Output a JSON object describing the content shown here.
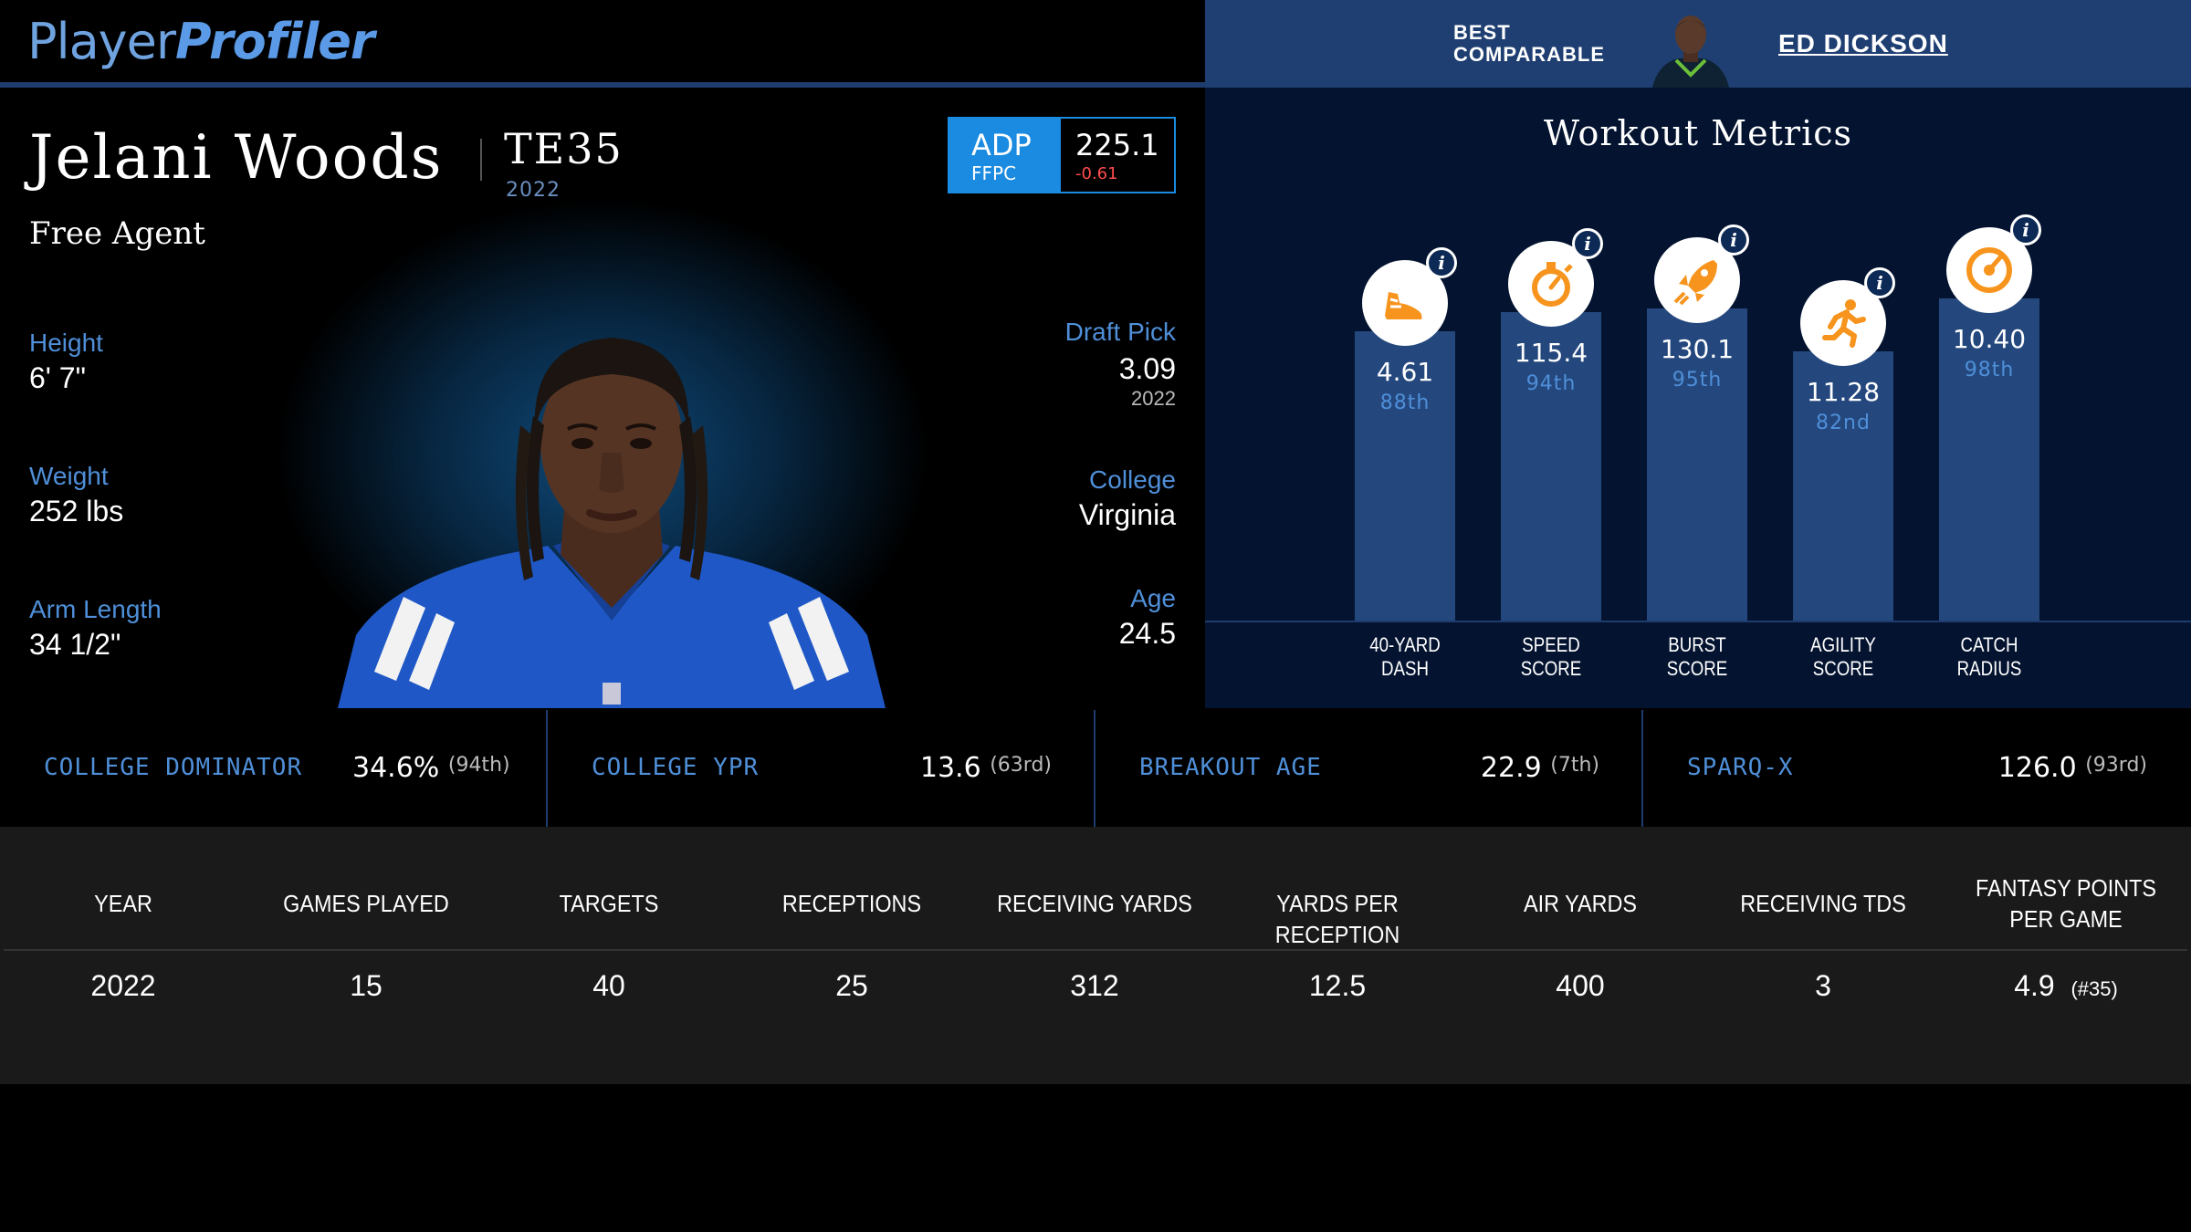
{
  "header": {
    "logo_part1": "Player",
    "logo_part2": "Profiler",
    "best_comparable_line1": "BEST",
    "best_comparable_line2": "COMPARABLE",
    "comparable_name": "ED DICKSON"
  },
  "player": {
    "name": "Jelani Woods",
    "position_rank": "TE35",
    "position_rank_year": "2022",
    "team": "Free Agent",
    "adp": {
      "label": "ADP",
      "site": "FFPC",
      "value": "225.1",
      "change": "-0.61"
    },
    "height_label": "Height",
    "height": "6' 7\"",
    "weight_label": "Weight",
    "weight": "252 lbs",
    "arm_label": "Arm Length",
    "arm": "34 1/2\"",
    "draft_label": "Draft Pick",
    "draft_pick": "3.09",
    "draft_year": "2022",
    "college_label": "College",
    "college": "Virginia",
    "age_label": "Age",
    "age": "24.5"
  },
  "workout": {
    "title": "Workout Metrics",
    "info_glyph": "i",
    "items": [
      {
        "label1": "40-YARD",
        "label2": "DASH",
        "value": "4.61",
        "percentile": "88th",
        "pct": 88,
        "icon": "shoe-icon"
      },
      {
        "label1": "SPEED",
        "label2": "SCORE",
        "value": "115.4",
        "percentile": "94th",
        "pct": 94,
        "icon": "stopwatch-icon"
      },
      {
        "label1": "BURST",
        "label2": "SCORE",
        "value": "130.1",
        "percentile": "95th",
        "pct": 95,
        "icon": "rocket-icon"
      },
      {
        "label1": "AGILITY",
        "label2": "SCORE",
        "value": "11.28",
        "percentile": "82nd",
        "pct": 82,
        "icon": "runner-icon"
      },
      {
        "label1": "CATCH",
        "label2": "RADIUS",
        "value": "10.40",
        "percentile": "98th",
        "pct": 98,
        "icon": "target-icon"
      }
    ],
    "accent_color": "#f7941d"
  },
  "metrics": [
    {
      "label": "COLLEGE DOMINATOR",
      "value": "34.6%",
      "pct": "(94th)"
    },
    {
      "label": "COLLEGE YPR",
      "value": "13.6",
      "pct": "(63rd)"
    },
    {
      "label": "BREAKOUT AGE",
      "value": "22.9",
      "pct": "(7th)"
    },
    {
      "label": "SPARQ-X",
      "value": "126.0",
      "pct": "(93rd)"
    }
  ],
  "table": {
    "headers": [
      "YEAR",
      "GAMES PLAYED",
      "TARGETS",
      "RECEPTIONS",
      "RECEIVING YARDS",
      "YARDS PER RECEPTION",
      "AIR YARDS",
      "RECEIVING TDS",
      "FANTASY POINTS PER GAME"
    ],
    "row": [
      "2022",
      "15",
      "40",
      "25",
      "312",
      "12.5",
      "400",
      "3",
      "4.9"
    ],
    "row_rank": "(#35)"
  },
  "colors": {
    "accent_blue": "#4f8fd8",
    "adp_blue": "#1a8be0",
    "negative_red": "#ff4d4d",
    "bar_blue": "#24487e",
    "panel_navy": "#041430"
  }
}
